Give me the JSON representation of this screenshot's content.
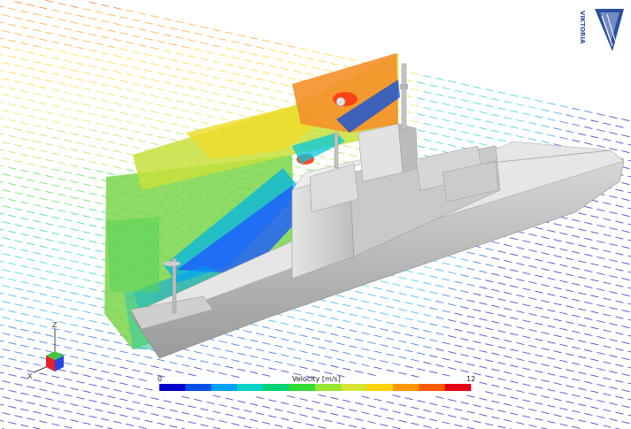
{
  "colorbar": {
    "title": "Velocity [m/s]",
    "min_label": "0",
    "max_label": "12",
    "colors": [
      "#0000c8",
      "#0050e6",
      "#00a0f0",
      "#00d2c8",
      "#00d278",
      "#32dc32",
      "#96e632",
      "#d2e632",
      "#ffd200",
      "#ff9600",
      "#ff5a00",
      "#e60014"
    ]
  },
  "triad": {
    "z_label": "Z",
    "x_label": "X"
  },
  "logo": {
    "text": "VIKTORIA",
    "color": "#2a4fa0"
  }
}
